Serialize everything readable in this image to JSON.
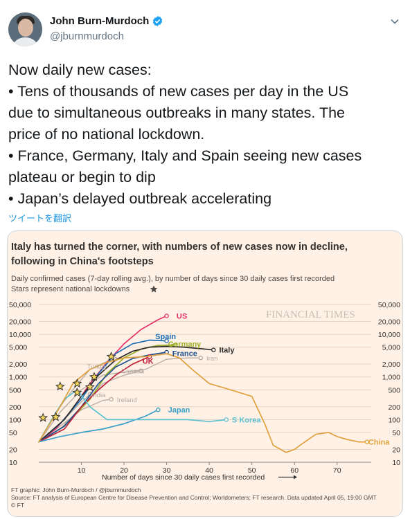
{
  "tweet": {
    "user_name": "John Burn-Murdoch",
    "handle": "@jburnmurdoch",
    "text_lines": [
      "Now daily new cases:",
      "• Tens of thousands of new cases per day in the US",
      "due to simultaneous outbreaks in many states. The",
      "price of no national lockdown.",
      "• France, Germany, Italy and Spain seeing new cases",
      "plateau or begin to dip",
      "• Japan’s delayed outbreak accelerating"
    ],
    "translate_label": "ツイートを翻訳",
    "verified_color": "#1da1f2"
  },
  "chart_data": {
    "type": "line",
    "title_line1": "Italy has turned the corner, with numbers of new cases now in decline,",
    "title_line2": "following in China's footsteps",
    "subtitle_line1": "Daily confirmed cases (7-day rolling avg.), by number of days since 30 daily cases first recorded",
    "subtitle_line2": "Stars represent national lockdowns",
    "brand": "FINANCIAL TIMES",
    "xlabel": "Number of days since 30 daily cases first recorded",
    "x_ticks": [
      10,
      20,
      30,
      40,
      50,
      60,
      70
    ],
    "x_range": [
      0,
      78
    ],
    "y_scale": "log",
    "y_range": [
      10,
      50000
    ],
    "y_tick_values": [
      10,
      20,
      50,
      100,
      200,
      500,
      1000,
      2000,
      5000,
      10000,
      20000,
      50000
    ],
    "y_tick_labels": [
      "10",
      "20",
      "50",
      "100",
      "200",
      "500",
      "1,000",
      "2,000",
      "5,000",
      "10,000",
      "20,000",
      "50,000"
    ],
    "footer_line1": "FT graphic: John Burn-Murdoch / @jburnmurdoch",
    "footer_line2": "Source: FT analysis of European Centre for Disease Prevention and Control; Worldometers; FT research. Data updated April 05, 19:00 GMT",
    "footer_line3": "© FT",
    "colors": {
      "background": "#fff1e5",
      "grid": "#e3d3c4",
      "text": "#33302e",
      "grey_series": "#b5a9a0",
      "us": "#e3336a",
      "spain": "#1f6fb5",
      "germany": "#9bae2a",
      "italy": "#2b2b2b",
      "france": "#1d4f91",
      "uk": "#c0223b",
      "china": "#e0a13c",
      "japan": "#3a9fc8",
      "skorea": "#5cc1d0",
      "brand": "#c8bdb3"
    },
    "series": [
      {
        "name": "US",
        "x": [
          0,
          4,
          8,
          12,
          16,
          20,
          24,
          28,
          30
        ],
        "y": [
          30,
          60,
          180,
          700,
          2200,
          6000,
          13000,
          22000,
          27000
        ]
      },
      {
        "name": "Spain",
        "x": [
          0,
          5,
          10,
          14,
          18,
          22,
          26,
          30
        ],
        "y": [
          30,
          80,
          300,
          1200,
          3500,
          6000,
          7300,
          7000
        ]
      },
      {
        "name": "Germany",
        "x": [
          0,
          6,
          12,
          16,
          20,
          24,
          28,
          32
        ],
        "y": [
          30,
          70,
          300,
          1200,
          2800,
          4500,
          5500,
          5600
        ]
      },
      {
        "name": "Italy",
        "x": [
          0,
          6,
          10,
          14,
          18,
          22,
          26,
          30,
          34,
          38,
          41
        ],
        "y": [
          30,
          100,
          350,
          1100,
          2500,
          4000,
          5000,
          5200,
          5000,
          4600,
          4300
        ]
      },
      {
        "name": "France",
        "x": [
          0,
          6,
          10,
          14,
          18,
          22,
          26,
          30
        ],
        "y": [
          30,
          70,
          200,
          700,
          1700,
          2700,
          3300,
          3800
        ]
      },
      {
        "name": "UK",
        "x": [
          0,
          6,
          10,
          14,
          18,
          22,
          26
        ],
        "y": [
          30,
          60,
          200,
          500,
          1100,
          2000,
          3000
        ]
      },
      {
        "name": "Turkey",
        "x": [
          0,
          4,
          8,
          12,
          16,
          18
        ],
        "y": [
          30,
          150,
          500,
          1500,
          2300,
          2600
        ]
      },
      {
        "name": "Canada",
        "x": [
          0,
          5,
          10,
          15,
          20,
          24
        ],
        "y": [
          30,
          60,
          200,
          700,
          1100,
          1400
        ]
      },
      {
        "name": "Iran",
        "x": [
          0,
          5,
          10,
          15,
          20,
          25,
          30,
          35,
          38
        ],
        "y": [
          30,
          150,
          500,
          1100,
          1300,
          1500,
          2600,
          2800,
          2800
        ]
      },
      {
        "name": "India",
        "x": [
          0,
          5,
          10,
          12
        ],
        "y": [
          30,
          80,
          260,
          390
        ]
      },
      {
        "name": "Ireland",
        "x": [
          0,
          5,
          10,
          15,
          17
        ],
        "y": [
          30,
          70,
          170,
          280,
          300
        ]
      },
      {
        "name": "Japan",
        "x": [
          0,
          5,
          10,
          15,
          20,
          25,
          28
        ],
        "y": [
          30,
          40,
          50,
          60,
          80,
          120,
          170
        ]
      },
      {
        "name": "S Korea",
        "x": [
          0,
          3,
          6,
          9,
          12,
          16,
          20,
          25,
          30,
          35,
          40,
          44
        ],
        "y": [
          30,
          100,
          300,
          500,
          200,
          100,
          100,
          100,
          100,
          100,
          90,
          100
        ]
      },
      {
        "name": "China",
        "x": [
          0,
          5,
          8,
          12,
          16,
          20,
          25,
          30,
          33,
          36,
          40,
          45,
          50,
          53,
          55,
          58,
          60,
          62,
          65,
          68,
          70,
          72,
          75,
          77
        ],
        "y": [
          30,
          200,
          700,
          1500,
          2200,
          2800,
          3000,
          3500,
          2800,
          1500,
          700,
          500,
          350,
          80,
          25,
          17,
          20,
          28,
          45,
          50,
          40,
          35,
          30,
          30
        ]
      }
    ],
    "labels": [
      {
        "text": "US",
        "x": 32,
        "y": 27000,
        "color_key": "us"
      },
      {
        "text": "Spain",
        "x": 27,
        "y": 9000,
        "color_key": "spain"
      },
      {
        "text": "Germany",
        "x": 30,
        "y": 5900,
        "color_key": "germany"
      },
      {
        "text": "Italy",
        "x": 42,
        "y": 4300,
        "color_key": "italy"
      },
      {
        "text": "France",
        "x": 31,
        "y": 3600,
        "color_key": "france"
      },
      {
        "text": "UK",
        "x": 24,
        "y": 2400,
        "color_key": "uk"
      },
      {
        "text": "Iran",
        "x": 39,
        "y": 2800,
        "color_key": "grey_series"
      },
      {
        "text": "Turkey",
        "x": 11,
        "y": 1800,
        "color_key": "grey_series"
      },
      {
        "text": "Canada",
        "x": 19,
        "y": 1400,
        "color_key": "grey_series"
      },
      {
        "text": "India",
        "x": 12,
        "y": 390,
        "color_key": "grey_series"
      },
      {
        "text": "Ireland",
        "x": 18,
        "y": 300,
        "color_key": "grey_series"
      },
      {
        "text": "Japan",
        "x": 30,
        "y": 170,
        "color_key": "japan"
      },
      {
        "text": "S Korea",
        "x": 45,
        "y": 100,
        "color_key": "skorea"
      },
      {
        "text": "China",
        "x": 77,
        "y": 30,
        "color_key": "china"
      }
    ],
    "lockdown_stars": [
      {
        "x": 1,
        "y": 110
      },
      {
        "x": 4,
        "y": 115
      },
      {
        "x": 5,
        "y": 600
      },
      {
        "x": 9,
        "y": 700
      },
      {
        "x": 9,
        "y": 430
      },
      {
        "x": 12,
        "y": 580
      },
      {
        "x": 13,
        "y": 1000
      },
      {
        "x": 17,
        "y": 3000
      }
    ]
  }
}
